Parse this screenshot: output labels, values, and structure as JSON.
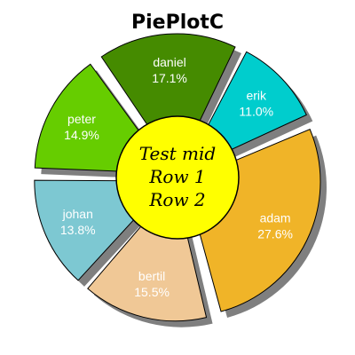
{
  "chart_data": {
    "type": "pie",
    "title": "PiePlotC",
    "slices": [
      {
        "label": "daniel",
        "value": 17.1,
        "pct": "17.1%",
        "color": "#458B00"
      },
      {
        "label": "erik",
        "value": 11.0,
        "pct": "11.0%",
        "color": "#00CDCD"
      },
      {
        "label": "adam",
        "value": 27.6,
        "pct": "27.6%",
        "color": "#F0B428"
      },
      {
        "label": "bertil",
        "value": 15.5,
        "pct": "15.5%",
        "color": "#F0C896"
      },
      {
        "label": "johan",
        "value": 13.8,
        "pct": "13.8%",
        "color": "#7DC8D2"
      },
      {
        "label": "peter",
        "value": 14.9,
        "pct": "14.9%",
        "color": "#66CD00"
      }
    ],
    "center": {
      "lines": [
        "Test mid",
        "Row 1",
        "Row 2"
      ],
      "color": "#FFFF00"
    }
  }
}
